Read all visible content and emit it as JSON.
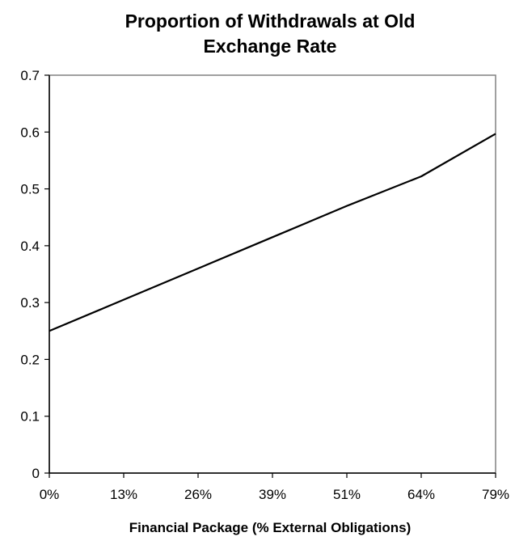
{
  "chart_data": {
    "type": "line",
    "title_lines": [
      "Proportion of Withdrawals at Old",
      "Exchange Rate"
    ],
    "xlabel": "Financial Package (% External Obligations)",
    "ylabel": "",
    "categories": [
      "0%",
      "13%",
      "26%",
      "39%",
      "51%",
      "64%",
      "79%"
    ],
    "yticks": [
      "0",
      "0.1",
      "0.2",
      "0.3",
      "0.4",
      "0.5",
      "0.6",
      "0.7"
    ],
    "ylim": [
      0,
      0.7
    ],
    "grid": false,
    "legend": "none",
    "series": [
      {
        "x": [
          0,
          1,
          2,
          3,
          4,
          5,
          6
        ],
        "values": [
          0.25,
          0.305,
          0.36,
          0.415,
          0.47,
          0.522,
          0.597
        ]
      }
    ],
    "colors": {
      "line": "#000000",
      "plot_border": "#808080",
      "axis": "#000000",
      "background": "#ffffff"
    }
  }
}
